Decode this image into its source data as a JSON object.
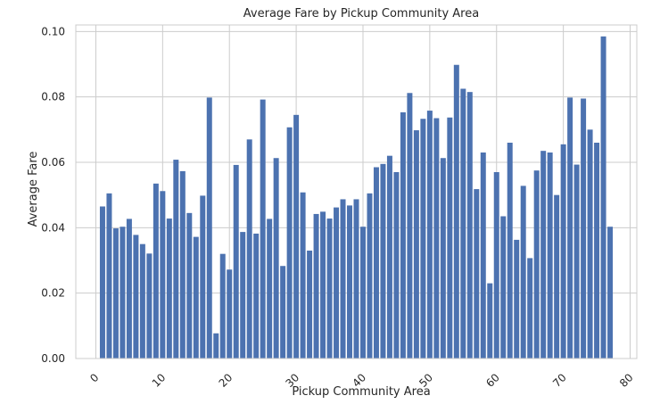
{
  "chart_data": {
    "type": "bar",
    "title": "Average Fare by Pickup Community Area",
    "xlabel": "Pickup Community Area",
    "ylabel": "Average Fare",
    "xlim": [
      -3,
      81
    ],
    "ylim": [
      0,
      0.102
    ],
    "xticks": [
      "0",
      "10",
      "20",
      "30",
      "40",
      "50",
      "60",
      "70",
      "80"
    ],
    "yticks": [
      "0.00",
      "0.02",
      "0.04",
      "0.06",
      "0.08",
      "0.10"
    ],
    "grid": true,
    "color": "#4c72b0",
    "x": [
      1,
      2,
      3,
      4,
      5,
      6,
      7,
      8,
      9,
      10,
      11,
      12,
      13,
      14,
      15,
      16,
      17,
      18,
      19,
      20,
      21,
      22,
      23,
      24,
      25,
      26,
      27,
      28,
      29,
      30,
      31,
      32,
      33,
      34,
      35,
      36,
      37,
      38,
      39,
      40,
      41,
      42,
      43,
      44,
      45,
      46,
      47,
      48,
      49,
      50,
      51,
      52,
      53,
      54,
      55,
      56,
      57,
      58,
      59,
      60,
      61,
      62,
      63,
      64,
      65,
      66,
      67,
      68,
      69,
      70,
      71,
      72,
      73,
      74,
      75,
      76,
      77
    ],
    "values": [
      0.0465,
      0.0505,
      0.0398,
      0.0403,
      0.0427,
      0.0378,
      0.035,
      0.0321,
      0.0535,
      0.0512,
      0.0428,
      0.0608,
      0.0573,
      0.0445,
      0.0372,
      0.0498,
      0.0798,
      0.0077,
      0.032,
      0.0272,
      0.0592,
      0.0387,
      0.067,
      0.0382,
      0.0792,
      0.0427,
      0.0613,
      0.0283,
      0.0707,
      0.0745,
      0.0508,
      0.033,
      0.0442,
      0.0449,
      0.0428,
      0.0462,
      0.0487,
      0.0468,
      0.0487,
      0.0403,
      0.0505,
      0.0585,
      0.0595,
      0.062,
      0.057,
      0.0753,
      0.0812,
      0.0698,
      0.0733,
      0.0758,
      0.0735,
      0.0613,
      0.0737,
      0.0898,
      0.0825,
      0.0815,
      0.0518,
      0.063,
      0.023,
      0.057,
      0.0435,
      0.066,
      0.0363,
      0.0528,
      0.0307,
      0.0575,
      0.0635,
      0.063,
      0.05,
      0.0655,
      0.0798,
      0.0593,
      0.0795,
      0.07,
      0.066,
      0.0985,
      0.0403
    ]
  }
}
